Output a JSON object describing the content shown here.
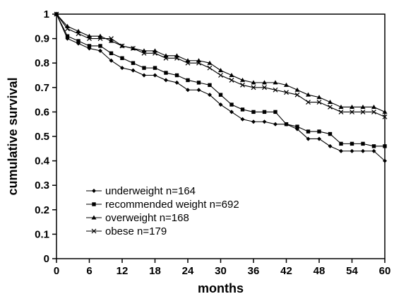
{
  "chart_data": {
    "type": "line",
    "title": "",
    "xlabel": "months",
    "ylabel": "cumulative survival",
    "xlim": [
      0,
      60
    ],
    "ylim": [
      0,
      1
    ],
    "xticks": [
      0,
      6,
      12,
      18,
      24,
      30,
      36,
      42,
      48,
      54,
      60
    ],
    "yticks": [
      0,
      0.1,
      0.2,
      0.3,
      0.4,
      0.5,
      0.6,
      0.7,
      0.8,
      0.9,
      1
    ],
    "grid": false,
    "legend_position": "bottom-left",
    "series": [
      {
        "name": "underweight n=164",
        "marker": "diamond",
        "points": [
          [
            0,
            1
          ],
          [
            2,
            0.9
          ],
          [
            4,
            0.88
          ],
          [
            6,
            0.86
          ],
          [
            8,
            0.85
          ],
          [
            10,
            0.81
          ],
          [
            12,
            0.78
          ],
          [
            14,
            0.77
          ],
          [
            16,
            0.75
          ],
          [
            18,
            0.75
          ],
          [
            20,
            0.73
          ],
          [
            22,
            0.72
          ],
          [
            24,
            0.69
          ],
          [
            26,
            0.69
          ],
          [
            28,
            0.67
          ],
          [
            30,
            0.63
          ],
          [
            32,
            0.6
          ],
          [
            34,
            0.57
          ],
          [
            36,
            0.56
          ],
          [
            38,
            0.56
          ],
          [
            40,
            0.55
          ],
          [
            42,
            0.55
          ],
          [
            44,
            0.53
          ],
          [
            46,
            0.49
          ],
          [
            48,
            0.49
          ],
          [
            50,
            0.46
          ],
          [
            52,
            0.44
          ],
          [
            54,
            0.44
          ],
          [
            56,
            0.44
          ],
          [
            58,
            0.44
          ],
          [
            60,
            0.4
          ]
        ]
      },
      {
        "name": "recommended weight n=692",
        "marker": "square",
        "points": [
          [
            0,
            1
          ],
          [
            2,
            0.91
          ],
          [
            4,
            0.89
          ],
          [
            6,
            0.87
          ],
          [
            8,
            0.87
          ],
          [
            10,
            0.84
          ],
          [
            12,
            0.82
          ],
          [
            14,
            0.8
          ],
          [
            16,
            0.78
          ],
          [
            18,
            0.78
          ],
          [
            20,
            0.76
          ],
          [
            22,
            0.75
          ],
          [
            24,
            0.73
          ],
          [
            26,
            0.72
          ],
          [
            28,
            0.71
          ],
          [
            30,
            0.67
          ],
          [
            32,
            0.63
          ],
          [
            34,
            0.61
          ],
          [
            36,
            0.6
          ],
          [
            38,
            0.6
          ],
          [
            40,
            0.6
          ],
          [
            42,
            0.55
          ],
          [
            44,
            0.54
          ],
          [
            46,
            0.52
          ],
          [
            48,
            0.52
          ],
          [
            50,
            0.51
          ],
          [
            52,
            0.47
          ],
          [
            54,
            0.47
          ],
          [
            56,
            0.47
          ],
          [
            58,
            0.46
          ],
          [
            60,
            0.46
          ]
        ]
      },
      {
        "name": "overweight n=168",
        "marker": "triangle",
        "points": [
          [
            0,
            1
          ],
          [
            2,
            0.95
          ],
          [
            4,
            0.93
          ],
          [
            6,
            0.91
          ],
          [
            8,
            0.91
          ],
          [
            10,
            0.89
          ],
          [
            12,
            0.87
          ],
          [
            14,
            0.86
          ],
          [
            16,
            0.85
          ],
          [
            18,
            0.85
          ],
          [
            20,
            0.83
          ],
          [
            22,
            0.83
          ],
          [
            24,
            0.81
          ],
          [
            26,
            0.81
          ],
          [
            28,
            0.8
          ],
          [
            30,
            0.77
          ],
          [
            32,
            0.75
          ],
          [
            34,
            0.73
          ],
          [
            36,
            0.72
          ],
          [
            38,
            0.72
          ],
          [
            40,
            0.72
          ],
          [
            42,
            0.71
          ],
          [
            44,
            0.69
          ],
          [
            46,
            0.67
          ],
          [
            48,
            0.66
          ],
          [
            50,
            0.64
          ],
          [
            52,
            0.62
          ],
          [
            54,
            0.62
          ],
          [
            56,
            0.62
          ],
          [
            58,
            0.62
          ],
          [
            60,
            0.6
          ]
        ]
      },
      {
        "name": "obese n=179",
        "marker": "x",
        "points": [
          [
            0,
            1
          ],
          [
            2,
            0.94
          ],
          [
            4,
            0.92
          ],
          [
            6,
            0.9
          ],
          [
            8,
            0.9
          ],
          [
            10,
            0.9
          ],
          [
            12,
            0.87
          ],
          [
            14,
            0.86
          ],
          [
            16,
            0.84
          ],
          [
            18,
            0.84
          ],
          [
            20,
            0.82
          ],
          [
            22,
            0.82
          ],
          [
            24,
            0.8
          ],
          [
            26,
            0.8
          ],
          [
            28,
            0.78
          ],
          [
            30,
            0.75
          ],
          [
            32,
            0.73
          ],
          [
            34,
            0.71
          ],
          [
            36,
            0.7
          ],
          [
            38,
            0.7
          ],
          [
            40,
            0.69
          ],
          [
            42,
            0.68
          ],
          [
            44,
            0.67
          ],
          [
            46,
            0.64
          ],
          [
            48,
            0.64
          ],
          [
            50,
            0.62
          ],
          [
            52,
            0.6
          ],
          [
            54,
            0.6
          ],
          [
            56,
            0.6
          ],
          [
            58,
            0.6
          ],
          [
            60,
            0.58
          ]
        ]
      }
    ]
  }
}
